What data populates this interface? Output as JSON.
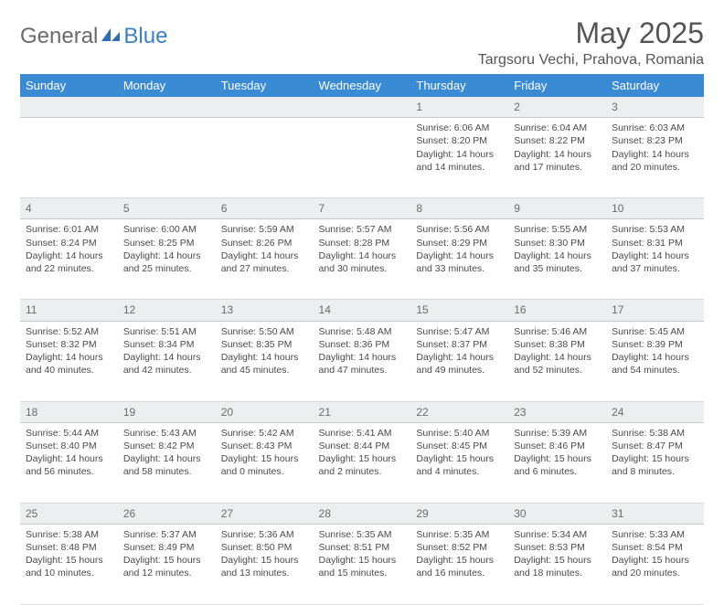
{
  "logo": {
    "part1": "General",
    "part2": "Blue"
  },
  "title": "May 2025",
  "location": "Targsoru Vechi, Prahova, Romania",
  "colors": {
    "header_bg": "#3b8bd4",
    "header_fg": "#ffffff",
    "daynum_bg": "#eceeef",
    "text": "#4a4a4a",
    "logo_gray": "#6a6a6a",
    "logo_blue": "#3b7fc4"
  },
  "weekdays": [
    "Sunday",
    "Monday",
    "Tuesday",
    "Wednesday",
    "Thursday",
    "Friday",
    "Saturday"
  ],
  "weeks": [
    {
      "nums": [
        "",
        "",
        "",
        "",
        "1",
        "2",
        "3"
      ],
      "cells": [
        null,
        null,
        null,
        null,
        {
          "sunrise": "6:06 AM",
          "sunset": "8:20 PM",
          "dlh": 14,
          "dlm": 14
        },
        {
          "sunrise": "6:04 AM",
          "sunset": "8:22 PM",
          "dlh": 14,
          "dlm": 17
        },
        {
          "sunrise": "6:03 AM",
          "sunset": "8:23 PM",
          "dlh": 14,
          "dlm": 20
        }
      ]
    },
    {
      "nums": [
        "4",
        "5",
        "6",
        "7",
        "8",
        "9",
        "10"
      ],
      "cells": [
        {
          "sunrise": "6:01 AM",
          "sunset": "8:24 PM",
          "dlh": 14,
          "dlm": 22
        },
        {
          "sunrise": "6:00 AM",
          "sunset": "8:25 PM",
          "dlh": 14,
          "dlm": 25
        },
        {
          "sunrise": "5:59 AM",
          "sunset": "8:26 PM",
          "dlh": 14,
          "dlm": 27
        },
        {
          "sunrise": "5:57 AM",
          "sunset": "8:28 PM",
          "dlh": 14,
          "dlm": 30
        },
        {
          "sunrise": "5:56 AM",
          "sunset": "8:29 PM",
          "dlh": 14,
          "dlm": 33
        },
        {
          "sunrise": "5:55 AM",
          "sunset": "8:30 PM",
          "dlh": 14,
          "dlm": 35
        },
        {
          "sunrise": "5:53 AM",
          "sunset": "8:31 PM",
          "dlh": 14,
          "dlm": 37
        }
      ]
    },
    {
      "nums": [
        "11",
        "12",
        "13",
        "14",
        "15",
        "16",
        "17"
      ],
      "cells": [
        {
          "sunrise": "5:52 AM",
          "sunset": "8:32 PM",
          "dlh": 14,
          "dlm": 40
        },
        {
          "sunrise": "5:51 AM",
          "sunset": "8:34 PM",
          "dlh": 14,
          "dlm": 42
        },
        {
          "sunrise": "5:50 AM",
          "sunset": "8:35 PM",
          "dlh": 14,
          "dlm": 45
        },
        {
          "sunrise": "5:48 AM",
          "sunset": "8:36 PM",
          "dlh": 14,
          "dlm": 47
        },
        {
          "sunrise": "5:47 AM",
          "sunset": "8:37 PM",
          "dlh": 14,
          "dlm": 49
        },
        {
          "sunrise": "5:46 AM",
          "sunset": "8:38 PM",
          "dlh": 14,
          "dlm": 52
        },
        {
          "sunrise": "5:45 AM",
          "sunset": "8:39 PM",
          "dlh": 14,
          "dlm": 54
        }
      ]
    },
    {
      "nums": [
        "18",
        "19",
        "20",
        "21",
        "22",
        "23",
        "24"
      ],
      "cells": [
        {
          "sunrise": "5:44 AM",
          "sunset": "8:40 PM",
          "dlh": 14,
          "dlm": 56
        },
        {
          "sunrise": "5:43 AM",
          "sunset": "8:42 PM",
          "dlh": 14,
          "dlm": 58
        },
        {
          "sunrise": "5:42 AM",
          "sunset": "8:43 PM",
          "dlh": 15,
          "dlm": 0
        },
        {
          "sunrise": "5:41 AM",
          "sunset": "8:44 PM",
          "dlh": 15,
          "dlm": 2
        },
        {
          "sunrise": "5:40 AM",
          "sunset": "8:45 PM",
          "dlh": 15,
          "dlm": 4
        },
        {
          "sunrise": "5:39 AM",
          "sunset": "8:46 PM",
          "dlh": 15,
          "dlm": 6
        },
        {
          "sunrise": "5:38 AM",
          "sunset": "8:47 PM",
          "dlh": 15,
          "dlm": 8
        }
      ]
    },
    {
      "nums": [
        "25",
        "26",
        "27",
        "28",
        "29",
        "30",
        "31"
      ],
      "cells": [
        {
          "sunrise": "5:38 AM",
          "sunset": "8:48 PM",
          "dlh": 15,
          "dlm": 10
        },
        {
          "sunrise": "5:37 AM",
          "sunset": "8:49 PM",
          "dlh": 15,
          "dlm": 12
        },
        {
          "sunrise": "5:36 AM",
          "sunset": "8:50 PM",
          "dlh": 15,
          "dlm": 13
        },
        {
          "sunrise": "5:35 AM",
          "sunset": "8:51 PM",
          "dlh": 15,
          "dlm": 15
        },
        {
          "sunrise": "5:35 AM",
          "sunset": "8:52 PM",
          "dlh": 15,
          "dlm": 16
        },
        {
          "sunrise": "5:34 AM",
          "sunset": "8:53 PM",
          "dlh": 15,
          "dlm": 18
        },
        {
          "sunrise": "5:33 AM",
          "sunset": "8:54 PM",
          "dlh": 15,
          "dlm": 20
        }
      ]
    }
  ],
  "labels": {
    "sunrise": "Sunrise:",
    "sunset": "Sunset:",
    "daylight": "Daylight:",
    "hours": "hours",
    "and": "and",
    "minutes": "minutes."
  }
}
